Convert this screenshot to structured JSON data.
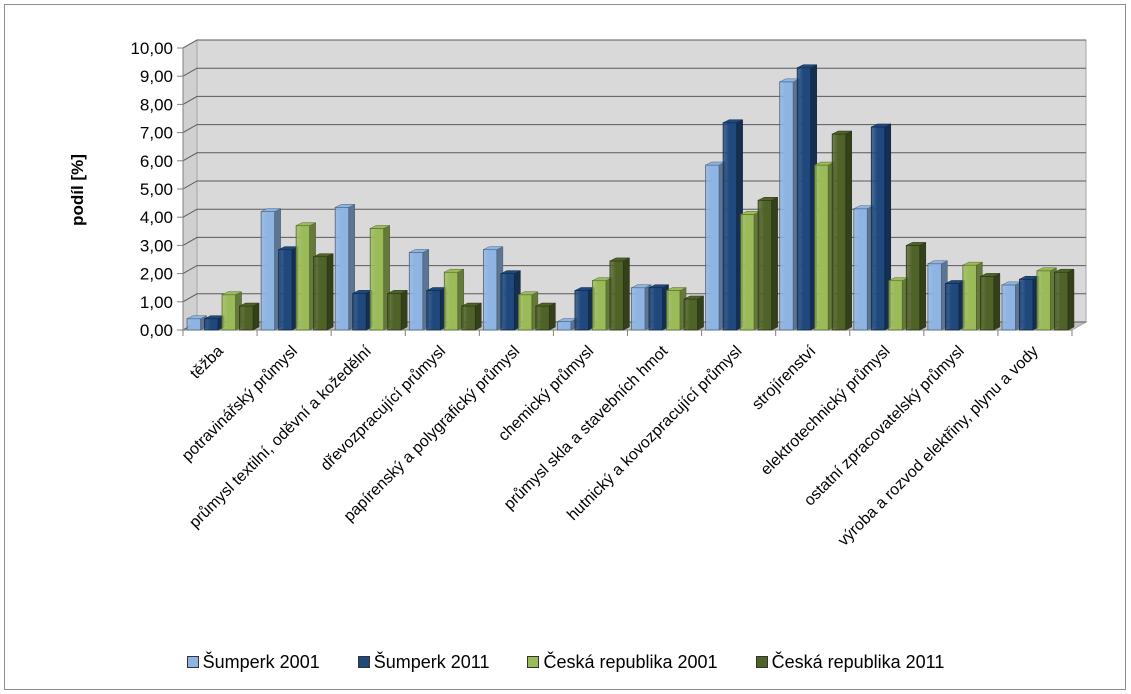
{
  "chart_data": {
    "type": "bar",
    "ylabel": "podíl [%]",
    "xlabel": "",
    "ylim": [
      0,
      10
    ],
    "y_tick_labels": [
      "0,00",
      "1,00",
      "2,00",
      "3,00",
      "4,00",
      "5,00",
      "6,00",
      "7,00",
      "8,00",
      "9,00",
      "10,00"
    ],
    "categories": [
      "těžba",
      "potravinářský průmysl",
      "průmysl textilní, oděvní a kožedělní",
      "dřevozpracující průmysl",
      "papírenský a polygrafický průmysl",
      "chemický průmysl",
      "průmysl skla a stavebních hmot",
      "hutnický a kovozpracující průmysl",
      "strojírenství",
      "elektrotechnický průmysl",
      "ostatní zpracovatelský průmysl",
      "výroba a rozvod elektřiny, plynu a vody"
    ],
    "series": [
      {
        "name": "Šumperk 2001",
        "color": "#8DB4E2",
        "values": [
          0.4,
          4.2,
          4.35,
          2.75,
          2.85,
          0.3,
          1.5,
          5.85,
          8.8,
          4.3,
          2.35,
          1.6
        ]
      },
      {
        "name": "Šumperk 2011",
        "color": "#1F497D",
        "values": [
          0.4,
          2.85,
          1.3,
          1.4,
          2.0,
          1.4,
          1.5,
          7.35,
          9.3,
          7.2,
          1.65,
          1.8
        ]
      },
      {
        "name": "Česká republika 2001",
        "color": "#9BBB59",
        "values": [
          1.25,
          3.7,
          3.6,
          2.05,
          1.25,
          1.75,
          1.4,
          4.1,
          5.85,
          1.75,
          2.3,
          2.1
        ]
      },
      {
        "name": "Česká republika 2011",
        "color": "#4F6228",
        "values": [
          0.85,
          2.6,
          1.3,
          0.85,
          0.85,
          2.45,
          1.1,
          4.6,
          6.95,
          3.0,
          1.9,
          2.05
        ]
      }
    ],
    "grid": true,
    "legend": "bottom"
  }
}
